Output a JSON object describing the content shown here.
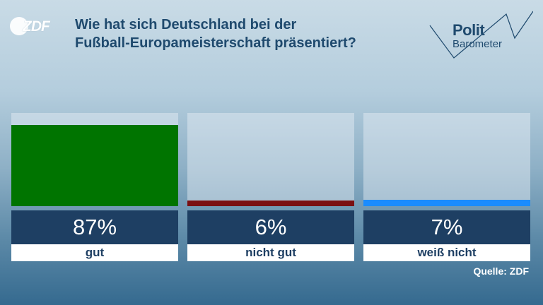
{
  "broadcaster": {
    "logo_text": "ZDF"
  },
  "header": {
    "title_line1": "Wie hat sich Deutschland bei der",
    "title_line2": "Fußball-Europameisterschaft präsentiert?"
  },
  "brand": {
    "word1": "Polit",
    "word2": "Barometer"
  },
  "chart_data": {
    "type": "bar",
    "title": "Wie hat sich Deutschland bei der Fußball-Europameisterschaft präsentiert?",
    "categories": [
      "gut",
      "nicht gut",
      "weiß nicht"
    ],
    "values": [
      87,
      6,
      7
    ],
    "value_labels": [
      "87%",
      "6%",
      "7%"
    ],
    "unit": "%",
    "ylim": [
      0,
      100
    ],
    "colors": [
      "#007400",
      "#7a0f12",
      "#1a8cff"
    ],
    "grid": false,
    "legend": "none"
  },
  "footer": {
    "source": "Quelle: ZDF"
  }
}
